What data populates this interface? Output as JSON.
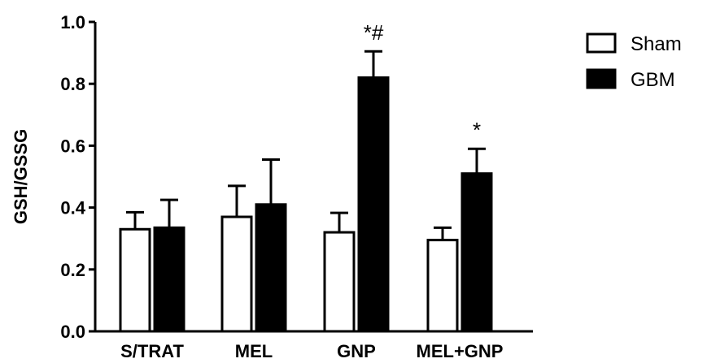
{
  "chart_data": {
    "type": "bar",
    "ylabel": "GSH/GSSG",
    "xlabel": "",
    "ylim": [
      0,
      1.0
    ],
    "yticks": [
      "0.0",
      "0.2",
      "0.4",
      "0.6",
      "0.8",
      "1.0"
    ],
    "categories": [
      "S/TRAT",
      "MEL",
      "GNP",
      "MEL+GNP"
    ],
    "series": [
      {
        "name": "Sham",
        "fill": "#ffffff",
        "stroke": "#000000",
        "values": [
          0.33,
          0.37,
          0.32,
          0.295
        ],
        "errors": [
          0.055,
          0.1,
          0.063,
          0.04
        ]
      },
      {
        "name": "GBM",
        "fill": "#000000",
        "stroke": "#000000",
        "values": [
          0.335,
          0.41,
          0.82,
          0.51
        ],
        "errors": [
          0.09,
          0.145,
          0.085,
          0.08
        ]
      }
    ],
    "annotations": [
      "",
      "",
      "*#",
      "*"
    ],
    "legend_position": "top-right",
    "grid": false
  }
}
